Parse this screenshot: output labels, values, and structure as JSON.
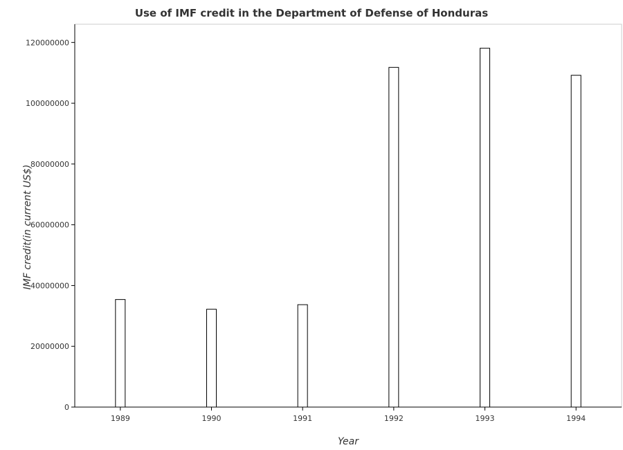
{
  "chart_data": {
    "type": "bar",
    "title": "Use of IMF credit in the Department of Defense of Honduras",
    "xlabel": "Year",
    "ylabel": "IMF credit(in current US$)",
    "categories": [
      "1989",
      "1990",
      "1991",
      "1992",
      "1993",
      "1994"
    ],
    "values": [
      35400000,
      32200000,
      33700000,
      111800000,
      118100000,
      109200000
    ],
    "ylim": [
      0,
      126000000
    ],
    "yticks": [
      0,
      20000000,
      40000000,
      60000000,
      80000000,
      100000000,
      120000000
    ],
    "ytick_labels": [
      "0",
      "20000000",
      "40000000",
      "60000000",
      "80000000",
      "100000000",
      "120000000"
    ],
    "grid": false,
    "legend": "none",
    "bar_color": "#ffffff",
    "bar_edge_color": "#000000"
  }
}
